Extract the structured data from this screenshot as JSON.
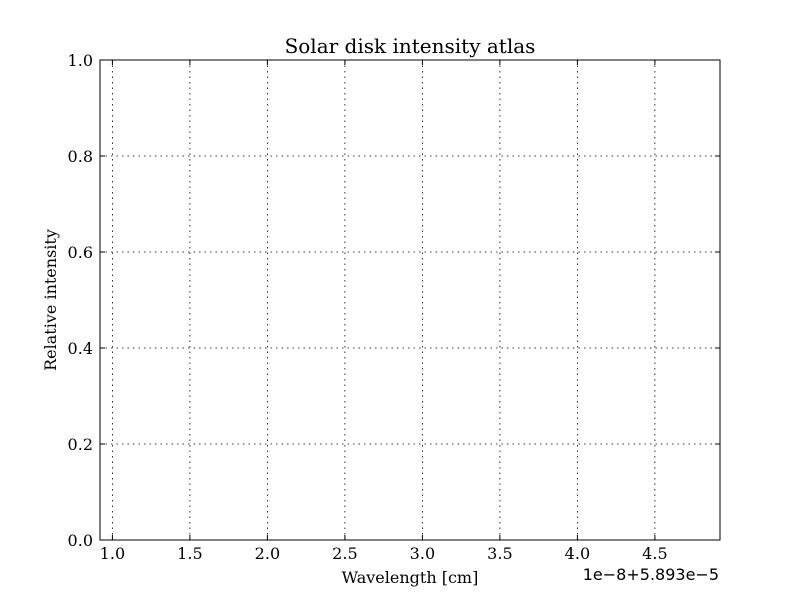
{
  "chart_data": {
    "type": "line",
    "title": "Solar disk intensity atlas",
    "xlabel": "Wavelength [cm]",
    "ylabel": "Relative intensity",
    "x_offset_label": "1e−8+5.893e−5",
    "xlim": [
      0.92,
      4.92
    ],
    "ylim": [
      0.0,
      1.0
    ],
    "x_ticks": [
      1.0,
      1.5,
      2.0,
      2.5,
      3.0,
      3.5,
      4.0,
      4.5
    ],
    "x_tick_labels": [
      "1.0",
      "1.5",
      "2.0",
      "2.5",
      "3.0",
      "3.5",
      "4.0",
      "4.5"
    ],
    "y_ticks": [
      0.0,
      0.2,
      0.4,
      0.6,
      0.8,
      1.0
    ],
    "y_tick_labels": [
      "0.0",
      "0.2",
      "0.4",
      "0.6",
      "0.8",
      "1.0"
    ],
    "grid": true,
    "series": []
  }
}
